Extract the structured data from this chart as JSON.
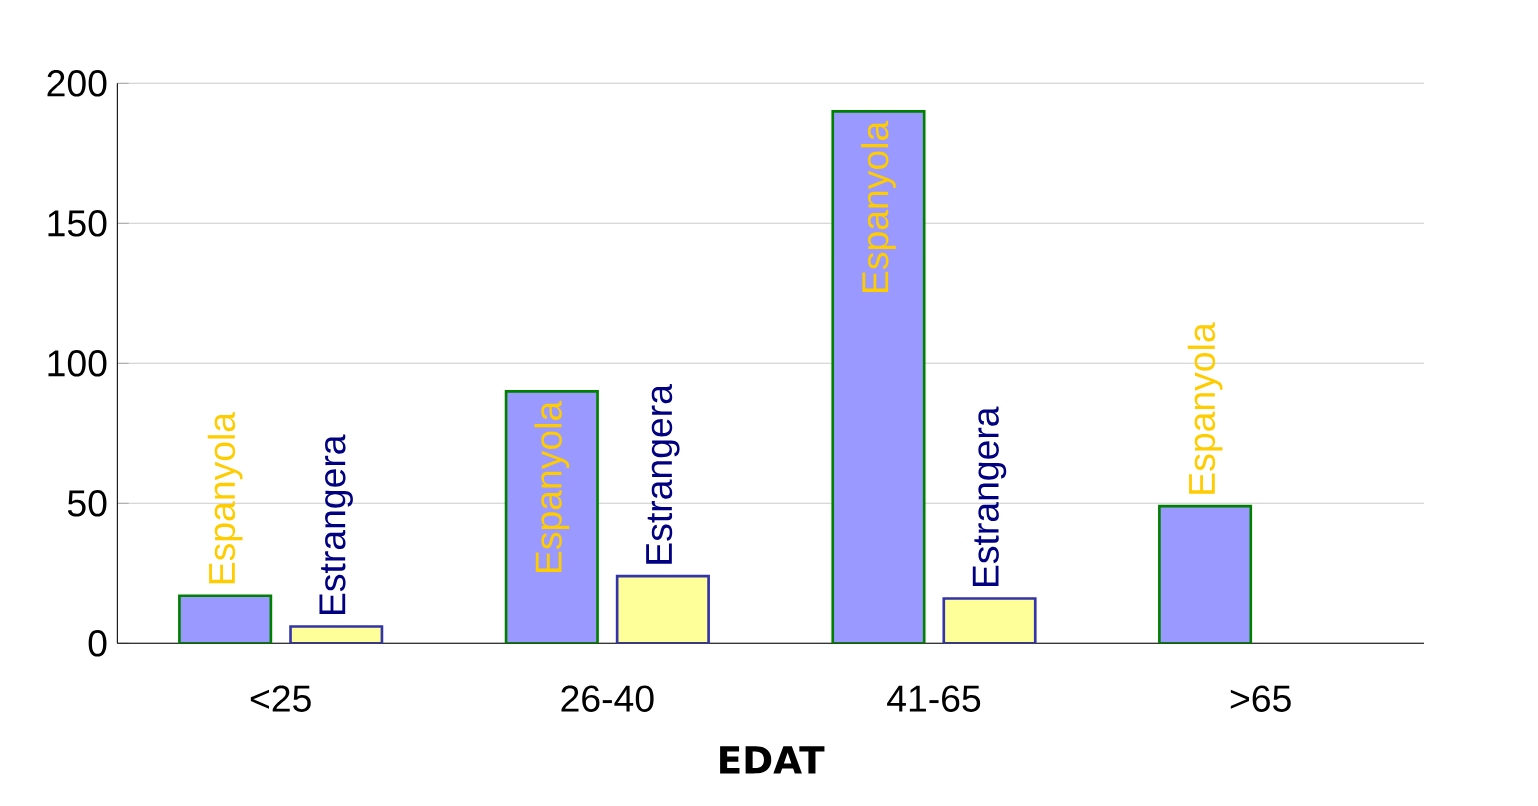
{
  "chart_data": {
    "type": "bar",
    "xlabel": "EDAT",
    "categories": [
      "<25",
      "26-40",
      "41-65",
      ">65"
    ],
    "series": [
      {
        "name": "Espanyola",
        "color": "#9999ff",
        "values": [
          17,
          90,
          190,
          49
        ]
      },
      {
        "name": "Estrangera",
        "color": "#ffff99",
        "values": [
          6,
          24,
          16,
          null
        ]
      }
    ],
    "ylim": [
      0,
      200
    ],
    "yticks": [
      0,
      50,
      100,
      150,
      200
    ],
    "grid": "y"
  }
}
